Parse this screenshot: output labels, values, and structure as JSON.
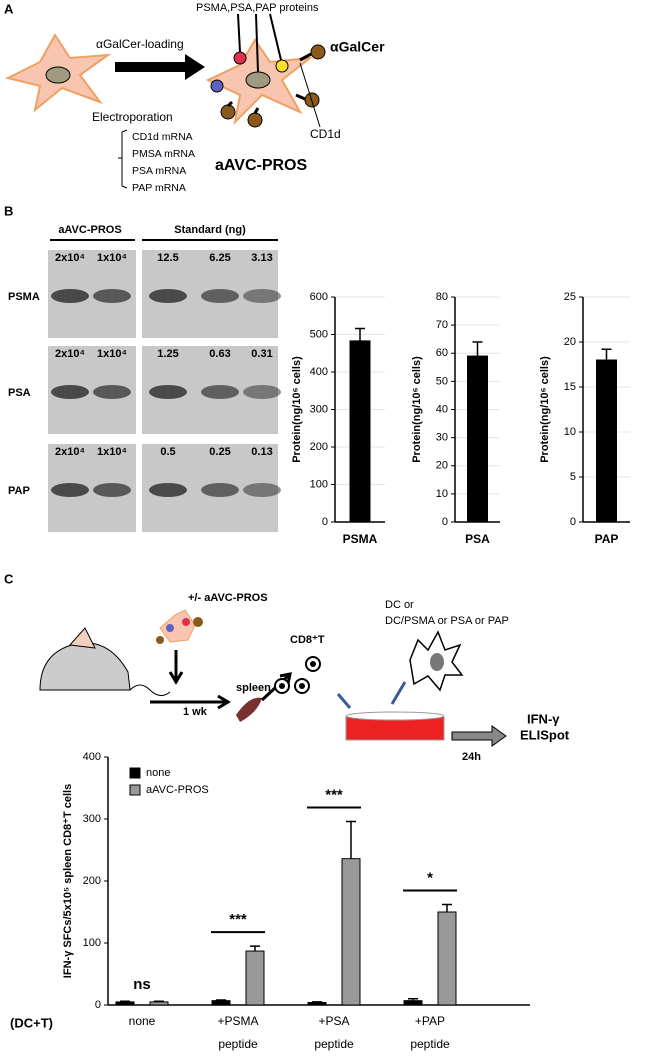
{
  "panel_a": {
    "label": "A",
    "proteins": "PSMA,PSA,PAP proteins",
    "loading": "αGalCer-loading",
    "electroporation": "Electroporation",
    "galcer": "αGalCer",
    "cd1d": "CD1d",
    "mrnas": [
      "CD1d mRNA",
      "PMSA mRNA",
      "PSA mRNA",
      "PAP mRNA"
    ],
    "product": "aAVC-PROS"
  },
  "panel_b": {
    "label": "B",
    "group_a": "aAVC-PROS",
    "group_b": "Standard (ng)",
    "rows": [
      {
        "name": "PSMA",
        "lanes": [
          "2x10⁴",
          "1x10⁴",
          "12.5",
          "6.25",
          "3.13"
        ]
      },
      {
        "name": "PSA",
        "lanes": [
          "2x10⁴",
          "1x10⁴",
          "1.25",
          "0.63",
          "0.31"
        ]
      },
      {
        "name": "PAP",
        "lanes": [
          "2x10⁴",
          "1x10⁴",
          "0.5",
          "0.25",
          "0.13"
        ]
      }
    ]
  },
  "panel_c": {
    "label": "C",
    "treatment": "+/- aAVC-PROS",
    "cd8": "CD8⁺T",
    "dc1": "DC or",
    "dc2": "DC/PSMA or PSA or PAP",
    "spleen": "spleen",
    "week": "1 wk",
    "hours": "24h",
    "ifn": "IFN-γ",
    "elispot": "ELISpot",
    "group_label": "(DC+T)"
  },
  "chart_data": [
    {
      "type": "bar",
      "y_label": "Protein(ng/10⁶ cells)",
      "categories": [
        "PSMA"
      ],
      "series": [
        {
          "color": "#000000",
          "values": [
            483
          ],
          "errors": [
            33
          ]
        }
      ],
      "ylim": [
        0,
        600
      ],
      "yticks": [
        0,
        100,
        200,
        300,
        400,
        500,
        600
      ],
      "grid": true
    },
    {
      "type": "bar",
      "y_label": "Protein(ng/10⁶ cells)",
      "categories": [
        "PSA"
      ],
      "series": [
        {
          "color": "#000000",
          "values": [
            59
          ],
          "errors": [
            5
          ]
        }
      ],
      "ylim": [
        0,
        80
      ],
      "yticks": [
        0,
        10,
        20,
        30,
        40,
        50,
        60,
        70,
        80
      ],
      "grid": true
    },
    {
      "type": "bar",
      "y_label": "Protein(ng/10⁶ cells)",
      "categories": [
        "PAP"
      ],
      "series": [
        {
          "color": "#000000",
          "values": [
            18
          ],
          "errors": [
            1.2
          ]
        }
      ],
      "ylim": [
        0,
        25
      ],
      "yticks": [
        0,
        5,
        10,
        15,
        20,
        25
      ],
      "grid": true
    },
    {
      "type": "bar",
      "y_label": "IFN-γ SFCs/5x10⁵ spleen CD8⁺T cells",
      "categories": [
        "none",
        "+PSMA peptide",
        "+PSA peptide",
        "+PAP peptide"
      ],
      "series": [
        {
          "name": "none",
          "color": "#000000",
          "values": [
            5,
            7,
            4,
            7
          ],
          "errors": [
            1,
            1,
            1,
            3
          ]
        },
        {
          "name": "aAVC-PROS",
          "color": "#999999",
          "values": [
            5,
            87,
            236,
            150
          ],
          "errors": [
            1,
            8,
            60,
            12
          ]
        }
      ],
      "significance": [
        "ns",
        "***",
        "***",
        "*"
      ],
      "ylim": [
        0,
        400
      ],
      "yticks": [
        0,
        100,
        200,
        300,
        400
      ],
      "grid": false,
      "legend": "top-left"
    }
  ]
}
